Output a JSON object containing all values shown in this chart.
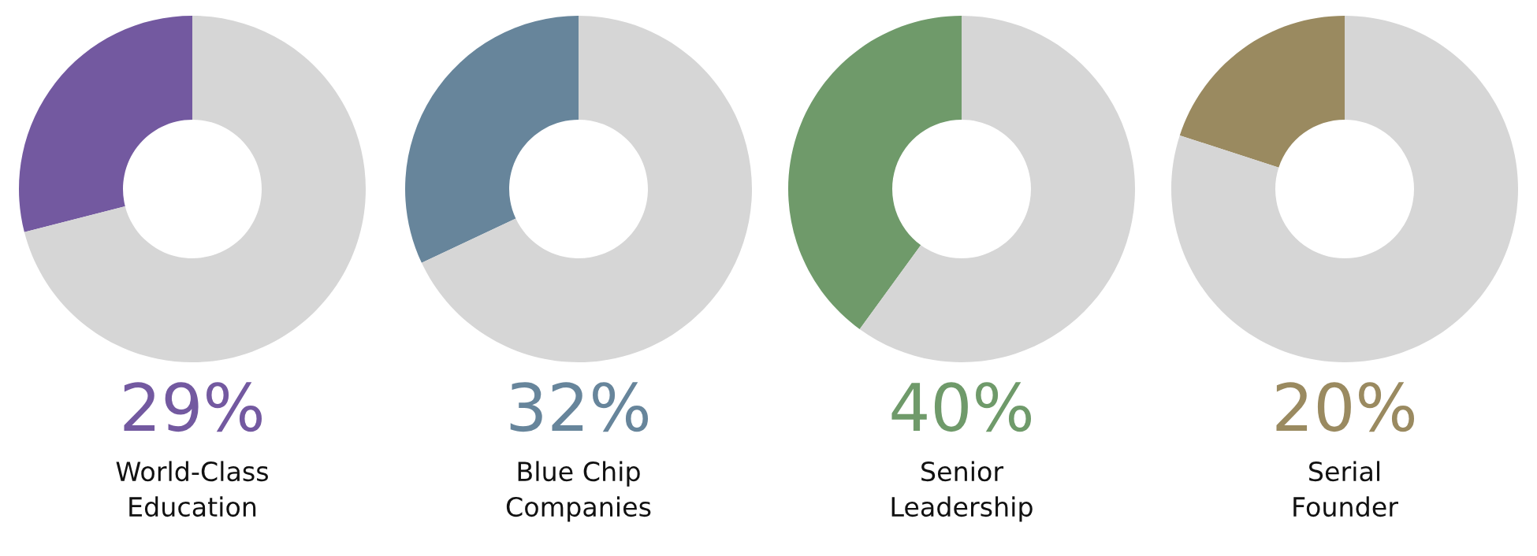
{
  "chart_data": [
    {
      "type": "donut",
      "title": "29%",
      "subtitle": "World-Class Education",
      "categories": [
        null,
        null
      ],
      "values": [
        29,
        71
      ],
      "colors": [
        "#7359a0",
        "#d6d6d6"
      ]
    },
    {
      "type": "donut",
      "title": "32%",
      "subtitle": "Blue Chip Companies",
      "categories": [
        null,
        null
      ],
      "values": [
        32,
        68
      ],
      "colors": [
        "#67859b",
        "#d6d6d6"
      ]
    },
    {
      "type": "donut",
      "title": "40%",
      "subtitle": "Senior Leadership",
      "categories": [
        null,
        null
      ],
      "values": [
        40,
        60
      ],
      "colors": [
        "#6f9a6a",
        "#d6d6d6"
      ]
    },
    {
      "type": "donut",
      "title": "20%",
      "subtitle": "Serial Founder",
      "categories": [
        null,
        null
      ],
      "values": [
        20,
        80
      ],
      "colors": [
        "#9a8a60",
        "#d6d6d6"
      ]
    }
  ]
}
